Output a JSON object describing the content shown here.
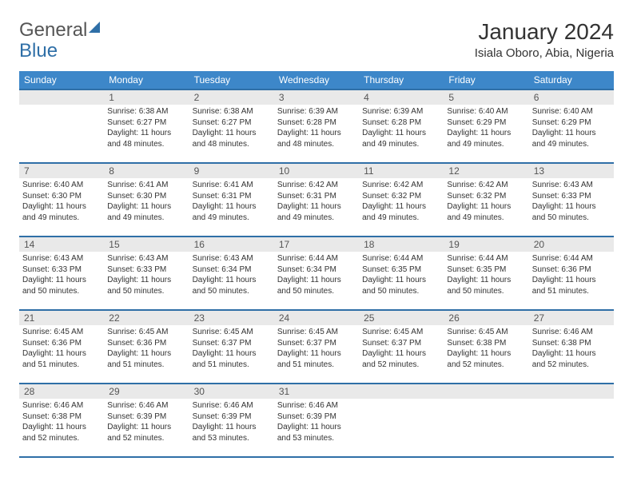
{
  "logo": {
    "part1": "General",
    "part2": "Blue"
  },
  "title": "January 2024",
  "location": "Isiala Oboro, Abia, Nigeria",
  "colors": {
    "header_bg": "#3d87c9",
    "header_border": "#2f6fa7",
    "daynum_bg": "#e9e9e9",
    "text": "#333333"
  },
  "weekdays": [
    "Sunday",
    "Monday",
    "Tuesday",
    "Wednesday",
    "Thursday",
    "Friday",
    "Saturday"
  ],
  "weeks": [
    [
      null,
      {
        "d": "1",
        "sr": "Sunrise: 6:38 AM",
        "ss": "Sunset: 6:27 PM",
        "dl": "Daylight: 11 hours and 48 minutes."
      },
      {
        "d": "2",
        "sr": "Sunrise: 6:38 AM",
        "ss": "Sunset: 6:27 PM",
        "dl": "Daylight: 11 hours and 48 minutes."
      },
      {
        "d": "3",
        "sr": "Sunrise: 6:39 AM",
        "ss": "Sunset: 6:28 PM",
        "dl": "Daylight: 11 hours and 48 minutes."
      },
      {
        "d": "4",
        "sr": "Sunrise: 6:39 AM",
        "ss": "Sunset: 6:28 PM",
        "dl": "Daylight: 11 hours and 49 minutes."
      },
      {
        "d": "5",
        "sr": "Sunrise: 6:40 AM",
        "ss": "Sunset: 6:29 PM",
        "dl": "Daylight: 11 hours and 49 minutes."
      },
      {
        "d": "6",
        "sr": "Sunrise: 6:40 AM",
        "ss": "Sunset: 6:29 PM",
        "dl": "Daylight: 11 hours and 49 minutes."
      }
    ],
    [
      {
        "d": "7",
        "sr": "Sunrise: 6:40 AM",
        "ss": "Sunset: 6:30 PM",
        "dl": "Daylight: 11 hours and 49 minutes."
      },
      {
        "d": "8",
        "sr": "Sunrise: 6:41 AM",
        "ss": "Sunset: 6:30 PM",
        "dl": "Daylight: 11 hours and 49 minutes."
      },
      {
        "d": "9",
        "sr": "Sunrise: 6:41 AM",
        "ss": "Sunset: 6:31 PM",
        "dl": "Daylight: 11 hours and 49 minutes."
      },
      {
        "d": "10",
        "sr": "Sunrise: 6:42 AM",
        "ss": "Sunset: 6:31 PM",
        "dl": "Daylight: 11 hours and 49 minutes."
      },
      {
        "d": "11",
        "sr": "Sunrise: 6:42 AM",
        "ss": "Sunset: 6:32 PM",
        "dl": "Daylight: 11 hours and 49 minutes."
      },
      {
        "d": "12",
        "sr": "Sunrise: 6:42 AM",
        "ss": "Sunset: 6:32 PM",
        "dl": "Daylight: 11 hours and 49 minutes."
      },
      {
        "d": "13",
        "sr": "Sunrise: 6:43 AM",
        "ss": "Sunset: 6:33 PM",
        "dl": "Daylight: 11 hours and 50 minutes."
      }
    ],
    [
      {
        "d": "14",
        "sr": "Sunrise: 6:43 AM",
        "ss": "Sunset: 6:33 PM",
        "dl": "Daylight: 11 hours and 50 minutes."
      },
      {
        "d": "15",
        "sr": "Sunrise: 6:43 AM",
        "ss": "Sunset: 6:33 PM",
        "dl": "Daylight: 11 hours and 50 minutes."
      },
      {
        "d": "16",
        "sr": "Sunrise: 6:43 AM",
        "ss": "Sunset: 6:34 PM",
        "dl": "Daylight: 11 hours and 50 minutes."
      },
      {
        "d": "17",
        "sr": "Sunrise: 6:44 AM",
        "ss": "Sunset: 6:34 PM",
        "dl": "Daylight: 11 hours and 50 minutes."
      },
      {
        "d": "18",
        "sr": "Sunrise: 6:44 AM",
        "ss": "Sunset: 6:35 PM",
        "dl": "Daylight: 11 hours and 50 minutes."
      },
      {
        "d": "19",
        "sr": "Sunrise: 6:44 AM",
        "ss": "Sunset: 6:35 PM",
        "dl": "Daylight: 11 hours and 50 minutes."
      },
      {
        "d": "20",
        "sr": "Sunrise: 6:44 AM",
        "ss": "Sunset: 6:36 PM",
        "dl": "Daylight: 11 hours and 51 minutes."
      }
    ],
    [
      {
        "d": "21",
        "sr": "Sunrise: 6:45 AM",
        "ss": "Sunset: 6:36 PM",
        "dl": "Daylight: 11 hours and 51 minutes."
      },
      {
        "d": "22",
        "sr": "Sunrise: 6:45 AM",
        "ss": "Sunset: 6:36 PM",
        "dl": "Daylight: 11 hours and 51 minutes."
      },
      {
        "d": "23",
        "sr": "Sunrise: 6:45 AM",
        "ss": "Sunset: 6:37 PM",
        "dl": "Daylight: 11 hours and 51 minutes."
      },
      {
        "d": "24",
        "sr": "Sunrise: 6:45 AM",
        "ss": "Sunset: 6:37 PM",
        "dl": "Daylight: 11 hours and 51 minutes."
      },
      {
        "d": "25",
        "sr": "Sunrise: 6:45 AM",
        "ss": "Sunset: 6:37 PM",
        "dl": "Daylight: 11 hours and 52 minutes."
      },
      {
        "d": "26",
        "sr": "Sunrise: 6:45 AM",
        "ss": "Sunset: 6:38 PM",
        "dl": "Daylight: 11 hours and 52 minutes."
      },
      {
        "d": "27",
        "sr": "Sunrise: 6:46 AM",
        "ss": "Sunset: 6:38 PM",
        "dl": "Daylight: 11 hours and 52 minutes."
      }
    ],
    [
      {
        "d": "28",
        "sr": "Sunrise: 6:46 AM",
        "ss": "Sunset: 6:38 PM",
        "dl": "Daylight: 11 hours and 52 minutes."
      },
      {
        "d": "29",
        "sr": "Sunrise: 6:46 AM",
        "ss": "Sunset: 6:39 PM",
        "dl": "Daylight: 11 hours and 52 minutes."
      },
      {
        "d": "30",
        "sr": "Sunrise: 6:46 AM",
        "ss": "Sunset: 6:39 PM",
        "dl": "Daylight: 11 hours and 53 minutes."
      },
      {
        "d": "31",
        "sr": "Sunrise: 6:46 AM",
        "ss": "Sunset: 6:39 PM",
        "dl": "Daylight: 11 hours and 53 minutes."
      },
      null,
      null,
      null
    ]
  ]
}
